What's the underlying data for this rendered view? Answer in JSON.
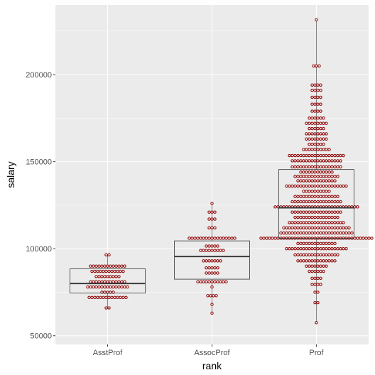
{
  "chart_data": {
    "type": "box-dotplot",
    "xlabel": "rank",
    "ylabel": "salary",
    "categories": [
      "AsstProf",
      "AssocProf",
      "Prof"
    ],
    "ylim": [
      45000,
      240000
    ],
    "yticks": [
      50000,
      100000,
      150000,
      200000
    ],
    "ytick_labels": [
      "50000",
      "100000",
      "150000",
      "200000"
    ],
    "grid": true,
    "background": "#ebebeb",
    "dot_fill": "#ffffff",
    "dot_stroke": "#8b0000",
    "boxes": [
      {
        "category": "AsstProf",
        "min": 65500,
        "q1": 74500,
        "median": 80000,
        "q3": 88500,
        "max": 96500
      },
      {
        "category": "AssocProf",
        "min": 63000,
        "q1": 82500,
        "median": 95500,
        "q3": 104500,
        "max": 126500
      },
      {
        "category": "Prof",
        "min": 57500,
        "q1": 106000,
        "median": 123500,
        "q3": 145500,
        "max": 231500
      }
    ],
    "dot_bins": [
      {
        "category": "AsstProf",
        "bins": [
          [
            66000,
            2
          ],
          [
            72000,
            14
          ],
          [
            75000,
            5
          ],
          [
            78000,
            15
          ],
          [
            81000,
            13
          ],
          [
            84000,
            9
          ],
          [
            87000,
            12
          ],
          [
            90000,
            13
          ],
          [
            96500,
            2
          ]
        ]
      },
      {
        "category": "AssocProf",
        "bins": [
          [
            63000,
            1
          ],
          [
            68000,
            1
          ],
          [
            73000,
            4
          ],
          [
            78000,
            1
          ],
          [
            81000,
            11
          ],
          [
            86000,
            5
          ],
          [
            89000,
            5
          ],
          [
            93000,
            7
          ],
          [
            99000,
            9
          ],
          [
            101500,
            5
          ],
          [
            106000,
            17
          ],
          [
            112000,
            3
          ],
          [
            117000,
            3
          ],
          [
            121000,
            3
          ],
          [
            126000,
            1
          ]
        ]
      },
      {
        "category": "Prof",
        "bins": [
          [
            57500,
            1
          ],
          [
            69000,
            2
          ],
          [
            75000,
            2
          ],
          [
            79500,
            4
          ],
          [
            83000,
            4
          ],
          [
            87000,
            6
          ],
          [
            90000,
            8
          ],
          [
            93000,
            14
          ],
          [
            96500,
            16
          ],
          [
            100000,
            22
          ],
          [
            103000,
            14
          ],
          [
            106000,
            40
          ],
          [
            109000,
            26
          ],
          [
            112000,
            24
          ],
          [
            115000,
            20
          ],
          [
            118000,
            16
          ],
          [
            121000,
            18
          ],
          [
            124000,
            30
          ],
          [
            127000,
            18
          ],
          [
            130000,
            16
          ],
          [
            133000,
            10
          ],
          [
            136000,
            22
          ],
          [
            139000,
            14
          ],
          [
            141500,
            16
          ],
          [
            144000,
            12
          ],
          [
            147000,
            18
          ],
          [
            150500,
            18
          ],
          [
            153500,
            20
          ],
          [
            157000,
            10
          ],
          [
            160000,
            6
          ],
          [
            163000,
            8
          ],
          [
            166000,
            8
          ],
          [
            169000,
            6
          ],
          [
            172000,
            8
          ],
          [
            175000,
            6
          ],
          [
            179000,
            4
          ],
          [
            183000,
            4
          ],
          [
            187000,
            4
          ],
          [
            191000,
            4
          ],
          [
            194000,
            4
          ],
          [
            205000,
            3
          ],
          [
            231500,
            1
          ]
        ]
      }
    ]
  }
}
